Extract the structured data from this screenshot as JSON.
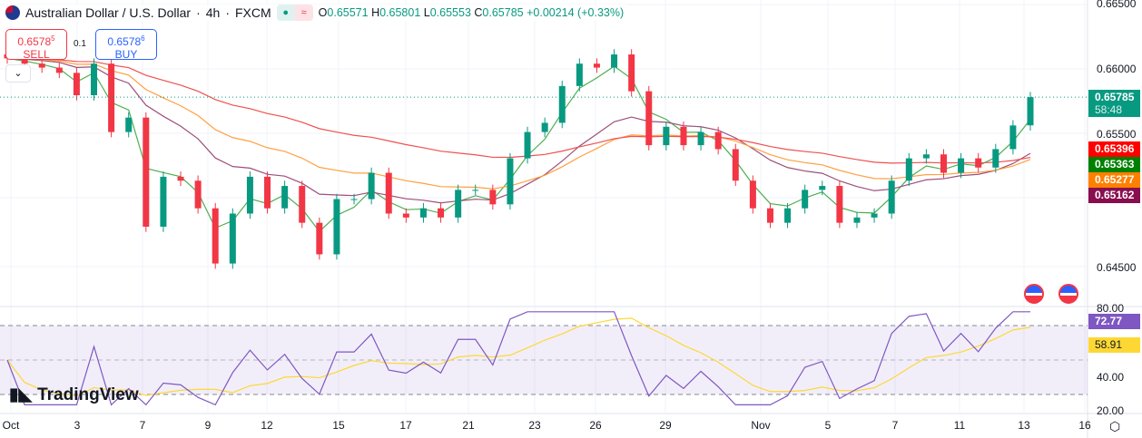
{
  "header": {
    "symbol": "Australian Dollar / U.S. Dollar",
    "interval": "4h",
    "exchange": "FXCM",
    "sep": "·",
    "ohlc": {
      "o_label": "O",
      "o": "0.65571",
      "h_label": "H",
      "h": "0.65801",
      "l_label": "L",
      "l": "0.65553",
      "c_label": "C",
      "c": "0.65785",
      "change": "+0.00214 (+0.33%)"
    },
    "market_status_icon": "dot-icon",
    "delay_icon": "approx-icon"
  },
  "trade": {
    "sell_price": "0.6578",
    "sell_sup": "5",
    "sell_label": "SELL",
    "buy_price": "0.6578",
    "buy_sup": "6",
    "buy_label": "BUY",
    "qty": "0.1"
  },
  "price_axis": {
    "ticks": [
      "0.66500",
      "0.66000",
      "0.65500",
      "0.64500"
    ],
    "last_price": "0.65785",
    "countdown": "58:48",
    "ma_labels": [
      {
        "value": "0.65396",
        "color": "#ff0000"
      },
      {
        "value": "0.65363",
        "color": "#008000"
      },
      {
        "value": "0.65277",
        "color": "#ff8000"
      },
      {
        "value": "0.65162",
        "color": "#880e4f"
      }
    ]
  },
  "rsi_axis": {
    "ticks": [
      "80.00",
      "40.00",
      "20.00"
    ],
    "rsi": "72.77",
    "rsi_ma": "58.91",
    "rsi_color": "#7e57c2",
    "rsi_ma_color": "#fdd835"
  },
  "time_axis": [
    "Oct",
    "3",
    "7",
    "9",
    "12",
    "15",
    "17",
    "21",
    "23",
    "26",
    "29",
    "Nov",
    "5",
    "7",
    "11",
    "13",
    "16"
  ],
  "logo": "TradingView",
  "colors": {
    "up": "#089981",
    "down": "#f23645"
  },
  "chart_data": {
    "type": "candlestick",
    "ylim": [
      0.6445,
      0.6652
    ],
    "last_open": 0.65571,
    "last_close": 0.65785,
    "closes": [
      0.6608,
      0.6604,
      0.6601,
      0.6597,
      0.658,
      0.6604,
      0.6552,
      0.6563,
      0.648,
      0.6518,
      0.6515,
      0.6494,
      0.6452,
      0.649,
      0.6518,
      0.6494,
      0.6511,
      0.6483,
      0.6459,
      0.6501,
      0.6501,
      0.6521,
      0.649,
      0.6487,
      0.6494,
      0.6487,
      0.6508,
      0.6508,
      0.6497,
      0.6532,
      0.6552,
      0.6559,
      0.6587,
      0.6604,
      0.6601,
      0.6611,
      0.6583,
      0.6542,
      0.6556,
      0.6542,
      0.6552,
      0.6539,
      0.6515,
      0.6494,
      0.6483,
      0.6494,
      0.6508,
      0.6511,
      0.6483,
      0.6487,
      0.649,
      0.6515,
      0.6532,
      0.6535,
      0.6521,
      0.6532,
      0.6525,
      0.6539,
      0.6557,
      0.6579
    ],
    "rsi_ylim": [
      20,
      80
    ],
    "rsi_bands": [
      70,
      50,
      30
    ]
  }
}
